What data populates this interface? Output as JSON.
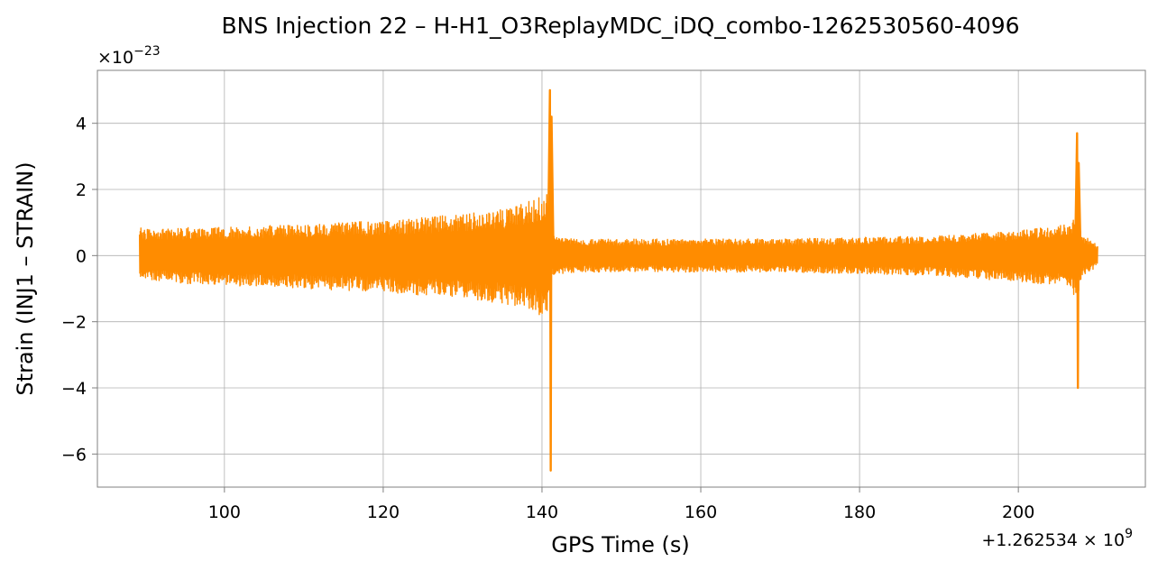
{
  "chart_data": {
    "type": "line",
    "title": "BNS Injection 22 – H-H1_O3ReplayMDC_iDQ_combo-1262530560-4096",
    "xlabel": "GPS Time (s)",
    "ylabel": "Strain (INJ1 – STRAIN)",
    "x_offset_label": "+1.262534 × 10",
    "x_offset_exp": "9",
    "y_scale_label": "×10",
    "y_scale_exp": "−23",
    "xlim": [
      84,
      216
    ],
    "ylim": [
      -7,
      5.6
    ],
    "x_ticks": [
      100,
      120,
      140,
      160,
      180,
      200
    ],
    "x_tick_labels": [
      "100",
      "120",
      "140",
      "160",
      "180",
      "200"
    ],
    "y_ticks": [
      -6,
      -4,
      -2,
      0,
      2,
      4
    ],
    "y_tick_labels": [
      "−6",
      "−4",
      "−2",
      "0",
      "2",
      "4"
    ],
    "grid": true,
    "line_color": "#ff8c00",
    "series": [
      {
        "envelope_x": [
          89.3,
          90,
          95,
          100,
          105,
          110,
          115,
          120,
          125,
          130,
          135,
          138,
          140,
          140.6,
          141.2,
          142,
          145,
          150,
          160,
          170,
          180,
          190,
          200,
          205,
          207,
          207.5,
          208,
          209,
          210
        ],
        "envelope_upper": [
          1.0,
          0.8,
          0.85,
          0.85,
          0.9,
          0.95,
          1.0,
          1.05,
          1.15,
          1.25,
          1.4,
          1.6,
          1.8,
          1.9,
          0.6,
          0.55,
          0.5,
          0.5,
          0.5,
          0.5,
          0.55,
          0.6,
          0.75,
          0.9,
          1.1,
          1.1,
          0.6,
          0.5,
          0.3
        ],
        "envelope_lower": [
          -0.8,
          -0.75,
          -0.85,
          -0.9,
          -0.95,
          -1.0,
          -1.05,
          -1.1,
          -1.2,
          -1.3,
          -1.45,
          -1.6,
          -1.85,
          -1.95,
          -0.6,
          -0.55,
          -0.5,
          -0.5,
          -0.5,
          -0.5,
          -0.55,
          -0.6,
          -0.8,
          -0.95,
          -1.2,
          -1.2,
          -0.6,
          -0.5,
          -0.3
        ],
        "spike_x": [
          141.0,
          141.1,
          141.2,
          207.4,
          207.5,
          207.6
        ],
        "spike_y": [
          5.0,
          -6.5,
          4.2,
          3.7,
          -4.0,
          2.8
        ]
      }
    ]
  }
}
